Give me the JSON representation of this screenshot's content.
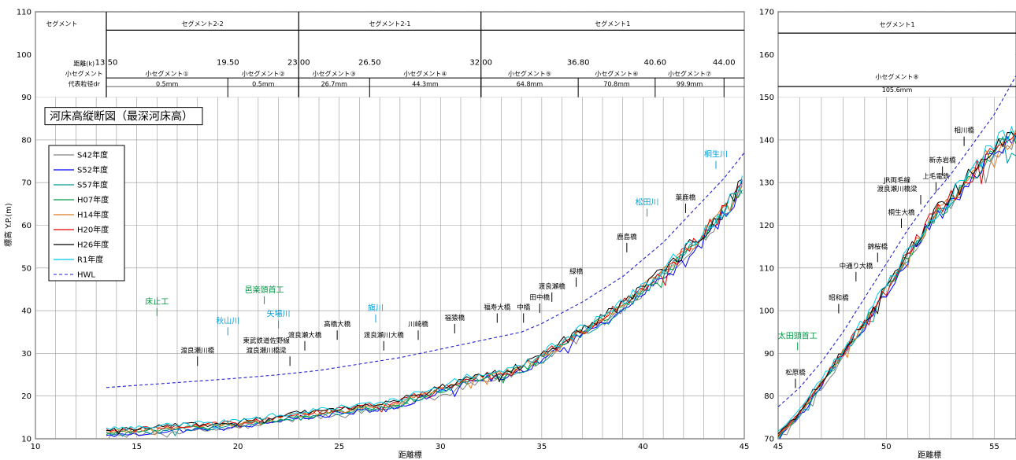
{
  "chart_data": [
    {
      "type": "line",
      "title": "河床高縦断図（最深河床高）",
      "xlabel": "距離標",
      "ylabel": "標高 Y.P.(m)",
      "xlim": [
        10,
        45
      ],
      "ylim": [
        10,
        110
      ],
      "xticks": [
        10,
        15,
        20,
        25,
        30,
        35,
        40,
        45
      ],
      "yticks": [
        10,
        20,
        30,
        40,
        50,
        60,
        70,
        80,
        90,
        100,
        110
      ],
      "grid": true,
      "legend": {
        "placement": "left",
        "entries": [
          "S42年度",
          "S52年度",
          "S57年度",
          "H07年度",
          "H14年度",
          "H20年度",
          "H26年度",
          "R1年度",
          "HWL"
        ]
      },
      "series_colors": {
        "S42年度": "#808080",
        "S52年度": "#0000ff",
        "S57年度": "#009999",
        "H07年度": "#009944",
        "H14年度": "#e07b20",
        "H20年度": "#e00000",
        "H26年度": "#000000",
        "R1年度": "#00c8e6",
        "HWL": "#2222cc"
      },
      "hwl": {
        "x": [
          13.5,
          15,
          18,
          20,
          22,
          24,
          26,
          28,
          30,
          32,
          34,
          35,
          36,
          37,
          38,
          39,
          40,
          41,
          42,
          43,
          44,
          45
        ],
        "y": [
          22,
          22.5,
          23.5,
          24.2,
          25,
          26,
          27.5,
          29,
          31,
          33,
          35,
          37,
          39.5,
          42,
          45,
          48,
          52,
          56,
          61,
          66,
          71,
          77
        ]
      },
      "riverbed_base": {
        "x": [
          13.5,
          15,
          17,
          19,
          20,
          21,
          22,
          23,
          24,
          25,
          26,
          27,
          28,
          29,
          30,
          31,
          32,
          33,
          34,
          35,
          36,
          37,
          38,
          39,
          40,
          41,
          42,
          43,
          44,
          45
        ],
        "y": [
          11.5,
          11.8,
          12.5,
          13,
          13.5,
          14,
          14.8,
          15.5,
          16,
          16.5,
          17,
          17.5,
          18.5,
          20,
          21.5,
          23,
          24.5,
          25,
          26.5,
          29,
          32,
          35,
          38,
          41,
          45,
          49,
          53,
          58,
          63,
          70
        ]
      },
      "segments": {
        "header": "セグメント",
        "names": [
          {
            "label": "セグメント2-2",
            "from": 13.5,
            "to": 23.0
          },
          {
            "label": "セグメント2-1",
            "from": 23.0,
            "to": 32.0
          },
          {
            "label": "セグメント1",
            "from": 32.0,
            "to": 45
          }
        ]
      },
      "subsegments": {
        "dist_label": "距離(k)",
        "sub_label": "小セグメント",
        "grain_label": "代表粒径dr",
        "boundaries": [
          {
            "x": 13.5,
            "label": "13.50"
          },
          {
            "x": 19.5,
            "label": "19.50"
          },
          {
            "x": 23.0,
            "label": "23.00"
          },
          {
            "x": 26.5,
            "label": "26.50"
          },
          {
            "x": 32.0,
            "label": "32.00"
          },
          {
            "x": 36.8,
            "label": "36.80"
          },
          {
            "x": 40.6,
            "label": "40.60"
          },
          {
            "x": 44.0,
            "label": "44.00"
          }
        ],
        "items": [
          {
            "label": "小セグメント①",
            "grain": "0.5mm",
            "from": 13.5,
            "to": 19.5
          },
          {
            "label": "小セグメント②",
            "grain": "0.5mm",
            "from": 19.5,
            "to": 23.0
          },
          {
            "label": "小セグメント③",
            "grain": "26.7mm",
            "from": 23.0,
            "to": 26.5
          },
          {
            "label": "小セグメント④",
            "grain": "44.3mm",
            "from": 26.5,
            "to": 32.0
          },
          {
            "label": "小セグメント⑤",
            "grain": "64.8mm",
            "from": 32.0,
            "to": 36.8
          },
          {
            "label": "小セグメント⑥",
            "grain": "70.8mm",
            "from": 36.8,
            "to": 40.6
          },
          {
            "label": "小セグメント⑦",
            "grain": "99.9mm",
            "from": 40.6,
            "to": 44.0
          }
        ]
      },
      "annotations": [
        {
          "text": "渡良瀬川橋",
          "x": 18.0,
          "y": 30.2,
          "kind": "bridge"
        },
        {
          "text": "東武鉄道佐野線",
          "x": 21.4,
          "y": 32.5,
          "kind": "bridge"
        },
        {
          "text": "渡良瀬川橋梁",
          "x": 21.4,
          "y": 30.2,
          "kind": "bridge"
        },
        {
          "text": "渡良瀬大橋",
          "x": 23.3,
          "y": 33.8,
          "kind": "bridge"
        },
        {
          "text": "高橋大橋",
          "x": 24.9,
          "y": 36.3,
          "kind": "bridge"
        },
        {
          "text": "渡良瀬川大橋",
          "x": 27.2,
          "y": 33.8,
          "kind": "bridge"
        },
        {
          "text": "川崎橋",
          "x": 28.9,
          "y": 36.3,
          "kind": "bridge"
        },
        {
          "text": "福猿橋",
          "x": 30.7,
          "y": 37.8,
          "kind": "bridge"
        },
        {
          "text": "福寿大橋",
          "x": 32.8,
          "y": 40.3,
          "kind": "bridge"
        },
        {
          "text": "中橋",
          "x": 34.1,
          "y": 40.3,
          "kind": "bridge"
        },
        {
          "text": "田中橋",
          "x": 34.9,
          "y": 42.6,
          "kind": "bridge"
        },
        {
          "text": "渡良瀬橋",
          "x": 35.5,
          "y": 45.2,
          "kind": "bridge"
        },
        {
          "text": "緑橋",
          "x": 36.7,
          "y": 48.7,
          "kind": "bridge"
        },
        {
          "text": "鹿島橋",
          "x": 39.2,
          "y": 56.8,
          "kind": "bridge"
        },
        {
          "text": "葉鹿橋",
          "x": 42.1,
          "y": 66.0,
          "kind": "bridge"
        },
        {
          "text": "床止工",
          "x": 16.0,
          "y": 41.5,
          "kind": "weir"
        },
        {
          "text": "邑楽頭首工",
          "x": 21.3,
          "y": 44.3,
          "kind": "weir"
        },
        {
          "text": "秋山川",
          "x": 19.5,
          "y": 37.0,
          "kind": "river"
        },
        {
          "text": "矢場川",
          "x": 22.0,
          "y": 38.6,
          "kind": "river"
        },
        {
          "text": "旗川",
          "x": 26.8,
          "y": 40.0,
          "kind": "river"
        },
        {
          "text": "松田川",
          "x": 40.2,
          "y": 64.8,
          "kind": "river"
        },
        {
          "text": "桐生川",
          "x": 43.6,
          "y": 76.0,
          "kind": "river"
        }
      ]
    },
    {
      "type": "line",
      "xlabel": "距離標",
      "xlim": [
        45,
        56
      ],
      "ylim": [
        70,
        170
      ],
      "xticks": [
        45,
        50,
        55
      ],
      "yticks": [
        70,
        80,
        90,
        100,
        110,
        120,
        130,
        140,
        150,
        160,
        170
      ],
      "grid": true,
      "hwl": {
        "x": [
          45,
          46,
          47,
          48,
          49,
          50,
          51,
          52,
          53,
          54,
          55,
          56
        ],
        "y": [
          77.5,
          82,
          88,
          95,
          103,
          111,
          119,
          126,
          132,
          139,
          146,
          155
        ]
      },
      "riverbed_base": {
        "x": [
          45,
          46,
          47,
          48,
          49,
          50,
          51,
          52,
          53,
          54,
          55,
          56
        ],
        "y": [
          70.5,
          76,
          83,
          90,
          97,
          105,
          113,
          121,
          126,
          132,
          138,
          141
        ]
      },
      "segments": {
        "names": [
          {
            "label": "セグメント1",
            "from": 45,
            "to": 56
          }
        ]
      },
      "subsegments": {
        "items": [
          {
            "label": "小セグメント⑧",
            "grain": "105.6mm",
            "from": 45,
            "to": 56
          }
        ]
      },
      "annotations": [
        {
          "text": "松原橋",
          "x": 45.8,
          "y": 85.0,
          "kind": "bridge"
        },
        {
          "text": "昭和橋",
          "x": 47.8,
          "y": 102.5,
          "kind": "bridge"
        },
        {
          "text": "中通り大橋",
          "x": 48.6,
          "y": 110.0,
          "kind": "bridge"
        },
        {
          "text": "錦桜橋",
          "x": 49.6,
          "y": 114.5,
          "kind": "bridge"
        },
        {
          "text": "桐生大橋",
          "x": 50.7,
          "y": 122.5,
          "kind": "bridge"
        },
        {
          "text": "JR両毛線",
          "x": 50.5,
          "y": 130.0,
          "kind": "bridge"
        },
        {
          "text": "渡良瀬川橋梁",
          "x": 50.5,
          "y": 128.0,
          "kind": "bridge"
        },
        {
          "text": "上毛電鉄",
          "x": 52.3,
          "y": 131.0,
          "kind": "bridge"
        },
        {
          "text": "新赤岩橋",
          "x": 52.6,
          "y": 134.7,
          "kind": "bridge"
        },
        {
          "text": "相川橋",
          "x": 53.6,
          "y": 141.7,
          "kind": "bridge"
        },
        {
          "text": "太田頭首工",
          "x": 45.9,
          "y": 93.5,
          "kind": "weir"
        }
      ]
    }
  ]
}
